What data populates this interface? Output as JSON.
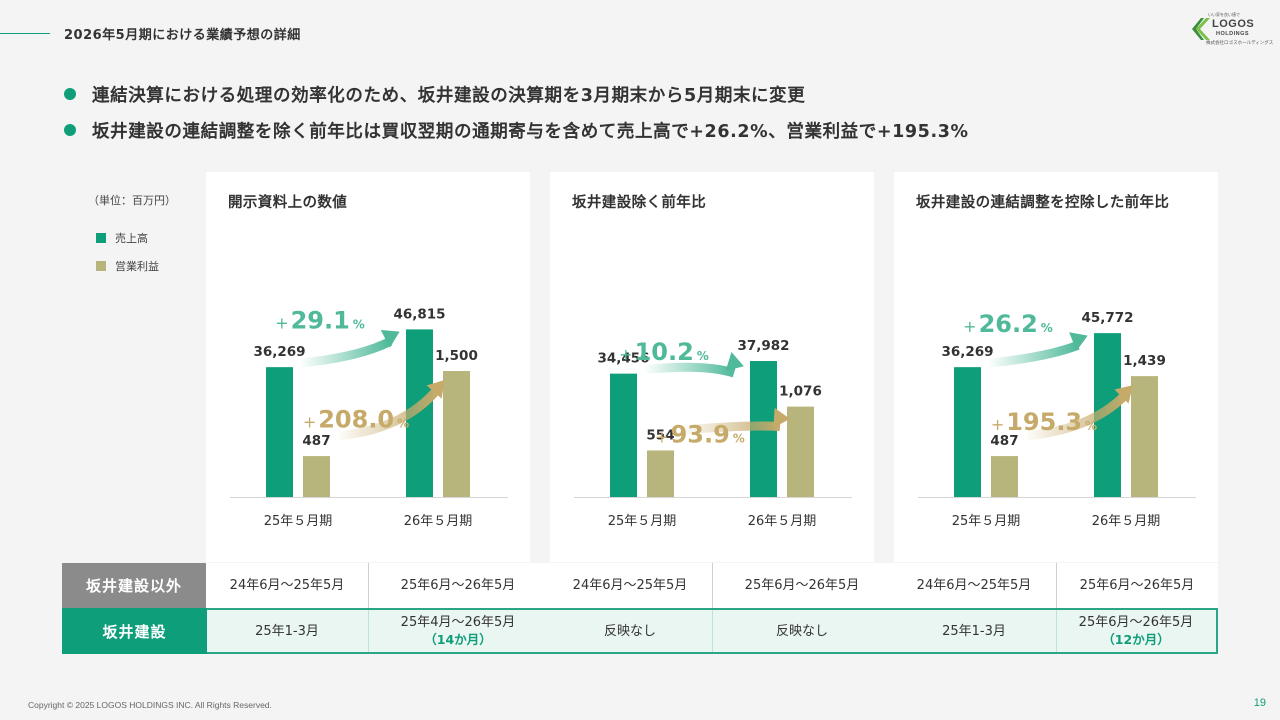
{
  "header": {
    "title": "2026年5月期における業績予想の詳細",
    "logo": {
      "tagline": "いい家を良い値で",
      "name": "LOGOS",
      "sub": "HOLDINGS",
      "company": "株式会社ロゴスホールディングス"
    }
  },
  "bullets": [
    "連結決算における処理の効率化のため、坂井建設の決算期を3月期末から5月期末に変更",
    "坂井建設の連結調整を除く前年比は買収翌期の通期寄与を含めて売上高で+26.2%、営業利益で+195.3%"
  ],
  "unit_label": "（単位：百万円）",
  "legend": [
    {
      "label": "売上高",
      "color": "#0e9e7a"
    },
    {
      "label": "営業利益",
      "color": "#b7b57b"
    }
  ],
  "colors": {
    "sales": "#0e9e7a",
    "profit": "#b7b57b",
    "sales_growth": "#4fb99a",
    "profit_growth": "#c6aa6a"
  },
  "chart_data": [
    {
      "type": "bar",
      "title": "開示資料上の数値",
      "categories": [
        "25年５月期",
        "26年５月期"
      ],
      "series": [
        {
          "name": "売上高",
          "values": [
            36269,
            46815
          ]
        },
        {
          "name": "営業利益",
          "values": [
            487,
            1500
          ]
        }
      ],
      "value_labels": {
        "sales": [
          "36,269",
          "46,815"
        ],
        "profit": [
          "487",
          "1,500"
        ]
      },
      "growth": {
        "sales": "29.1",
        "profit": "208.0"
      }
    },
    {
      "type": "bar",
      "title": "坂井建設除く前年比",
      "categories": [
        "25年５月期",
        "26年５月期"
      ],
      "series": [
        {
          "name": "売上高",
          "values": [
            34456,
            37982
          ]
        },
        {
          "name": "営業利益",
          "values": [
            554,
            1076
          ]
        }
      ],
      "value_labels": {
        "sales": [
          "34,456",
          "37,982"
        ],
        "profit": [
          "554",
          "1,076"
        ]
      },
      "growth": {
        "sales": "10.2",
        "profit": "93.9"
      }
    },
    {
      "type": "bar",
      "title": "坂井建設の連結調整を控除した前年比",
      "categories": [
        "25年５月期",
        "26年５月期"
      ],
      "series": [
        {
          "name": "売上高",
          "values": [
            36269,
            45772
          ]
        },
        {
          "name": "営業利益",
          "values": [
            487,
            1439
          ]
        }
      ],
      "value_labels": {
        "sales": [
          "36,269",
          "45,772"
        ],
        "profit": [
          "487",
          "1,439"
        ]
      },
      "growth": {
        "sales": "26.2",
        "profit": "195.3"
      }
    }
  ],
  "growth_symbols": {
    "plus": "+",
    "percent": "%"
  },
  "table": {
    "row1": {
      "label": "坂井建設以外",
      "cells": [
        "24年6月～25年5月",
        "25年6月～26年5月",
        "24年6月～25年5月",
        "25年6月～26年5月",
        "24年6月～25年5月",
        "25年6月～26年5月"
      ]
    },
    "row2": {
      "label": "坂井建設",
      "cells": [
        {
          "main": "25年1-3月",
          "sub": ""
        },
        {
          "main": "25年4月～26年5月",
          "sub": "（14か月）"
        },
        {
          "main": "反映なし",
          "sub": ""
        },
        {
          "main": "反映なし",
          "sub": ""
        },
        {
          "main": "25年1-3月",
          "sub": ""
        },
        {
          "main": "25年6月～26年5月",
          "sub": "（12か月）"
        }
      ]
    }
  },
  "footer": {
    "copyright": "Copyright © 2025 LOGOS HOLDINGS INC. All Rights Reserved.",
    "page": "19"
  }
}
